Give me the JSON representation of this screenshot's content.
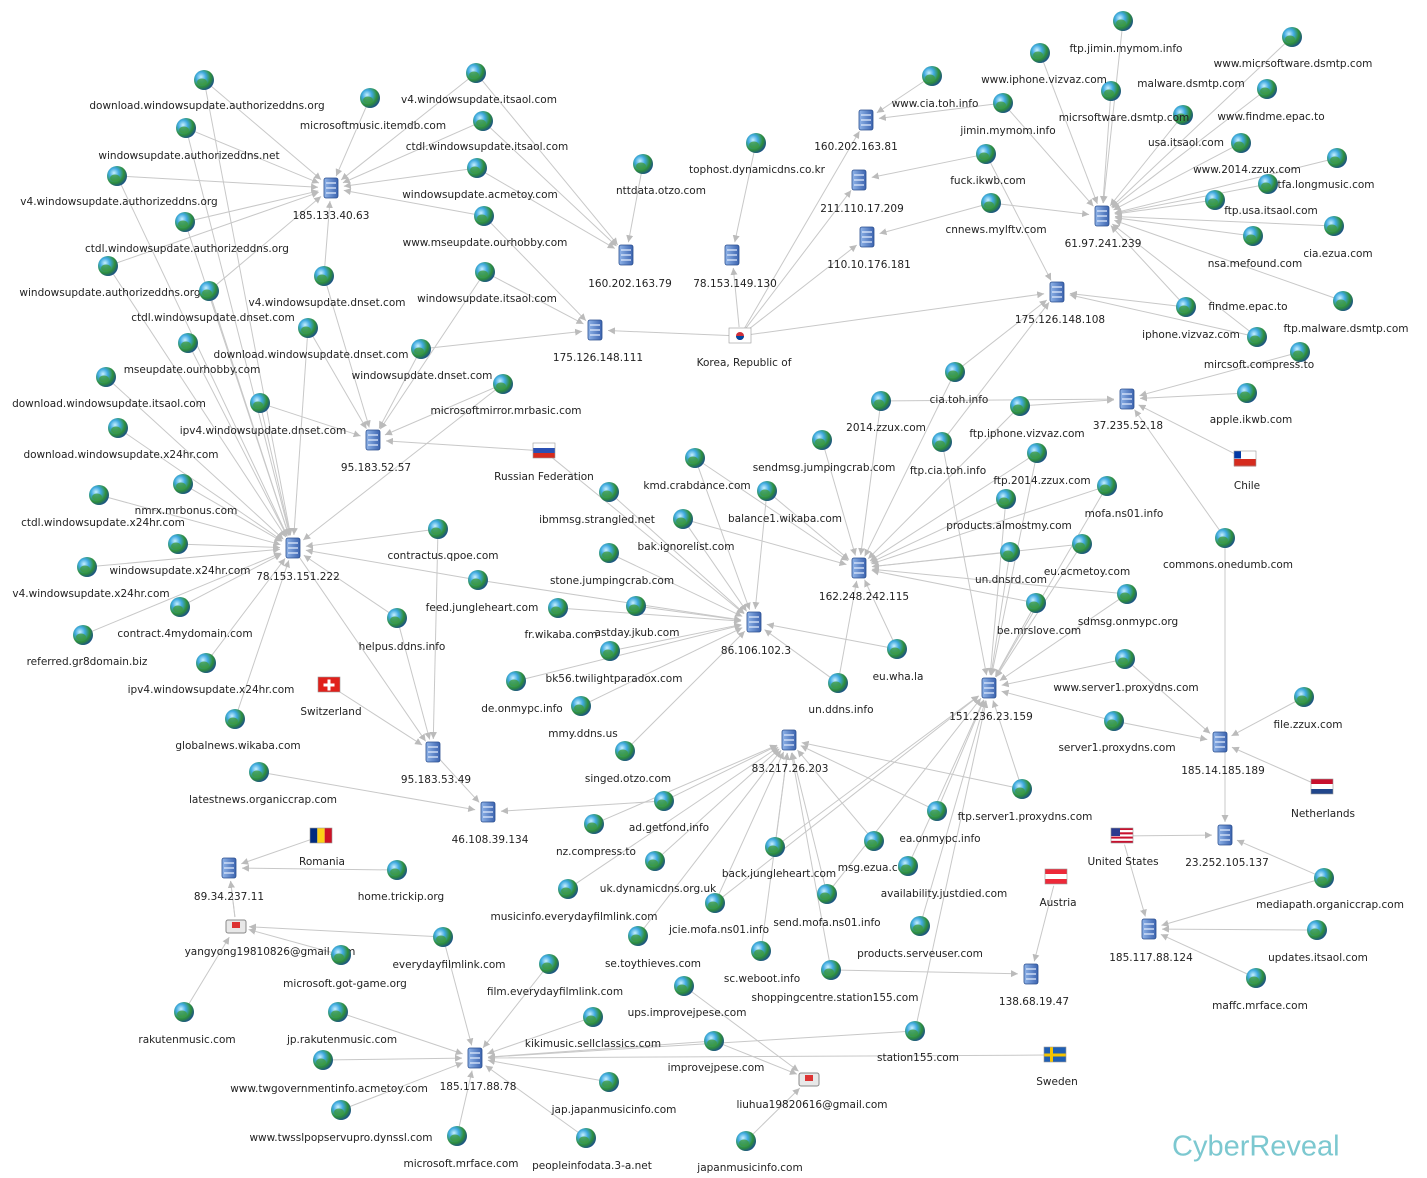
{
  "servers": [
    "185.133.40.63",
    "160.202.163.79",
    "78.153.149.130",
    "160.202.163.81",
    "211.110.17.209",
    "110.10.176.181",
    "61.97.241.239",
    "175.126.148.108",
    "175.126.148.111",
    "37.235.52.18",
    "95.183.52.57",
    "78.153.151.222",
    "162.248.242.115",
    "86.106.102.3",
    "151.236.23.159",
    "83.217.26.203",
    "185.14.185.189",
    "95.183.53.49",
    "46.108.39.134",
    "89.34.237.11",
    "23.252.105.137",
    "185.117.88.124",
    "138.68.19.47",
    "185.117.88.78"
  ],
  "countries": [
    "Korea, Republic of",
    "Russian Federation",
    "Chile",
    "Switzerland",
    "Romania",
    "Netherlands",
    "United States",
    "Austria",
    "Sweden"
  ],
  "emails": [
    "yangyong19810826@gmail.com",
    "liuhua19820616@gmail.com"
  ],
  "domains": [
    "download.windowsupdate.authorizeddns.org",
    "microsoftmusic.itemdb.com",
    "v4.windowsupdate.itsaol.com",
    "windowsupdate.authorizeddns.net",
    "ctdl.windowsupdate.itsaol.com",
    "v4.windowsupdate.authorizeddns.org",
    "windowsupdate.acmetoy.com",
    "ctdl.windowsupdate.authorizeddns.org",
    "www.mseupdate.ourhobby.com",
    "windowsupdate.authorizeddns.org",
    "v4.windowsupdate.dnset.com",
    "windowsupdate.itsaol.com",
    "ctdl.windowsupdate.dnset.com",
    "download.windowsupdate.dnset.com",
    "mseupdate.ourhobby.com",
    "download.windowsupdate.itsaol.com",
    "windowsupdate.dnset.com",
    "microsoftmirror.mrbasic.com",
    "ipv4.windowsupdate.dnset.com",
    "download.windowsupdate.x24hr.com",
    "nmrx.mrbonus.com",
    "ctdl.windowsupdate.x24hr.com",
    "windowsupdate.x24hr.com",
    "contractus.qpoe.com",
    "v4.windowsupdate.x24hr.com",
    "feed.jungleheart.com",
    "stone.jumpingcrab.com",
    "contract.4mydomain.com",
    "referred.gr8domain.biz",
    "helpus.ddns.info",
    "ipv4.windowsupdate.x24hr.com",
    "globalnews.wikaba.com",
    "latestnews.organiccrap.com",
    "fr.wikaba.com",
    "astday.jkub.com",
    "bk56.twilightparadox.com",
    "de.onmypc.info",
    "mmy.ddns.us",
    "singed.otzo.com",
    "ad.getfond.info",
    "nz.compress.to",
    "uk.dynamicdns.org.uk",
    "home.trickip.org",
    "musicinfo.everydayfilmlink.com",
    "everydayfilmlink.com",
    "microsoft.got-game.org",
    "film.everydayfilmlink.com",
    "rakutenmusic.com",
    "jp.rakutenmusic.com",
    "kikimusic.sellclassics.com",
    "www.twgovernmentinfo.acmetoy.com",
    "jap.japanmusicinfo.com",
    "www.twsslpopservupro.dynssl.com",
    "microsoft.mrface.com",
    "peopleinfodata.3-a.net",
    "japanmusicinfo.com",
    "improvejpese.com",
    "ups.improvejpese.com",
    "se.toythieves.com",
    "jcie.mofa.ns01.info",
    "sc.weboot.info",
    "back.jungleheart.com",
    "send.mofa.ns01.info",
    "shoppingcentre.station155.com",
    "station155.com",
    "msg.ezua.com",
    "availability.justdied.com",
    "products.serveuser.com",
    "ea.onmypc.info",
    "ftp.server1.proxydns.com",
    "eu.wha.la",
    "un.ddns.info",
    "kmd.crabdance.com",
    "sendmsg.jumpingcrab.com",
    "ibmmsg.strangled.net",
    "balance1.wikaba.com",
    "bak.ignorelist.com",
    "2014.zzux.com",
    "cia.toh.info",
    "ftp.iphone.vizvaz.com",
    "ftp.cia.toh.info",
    "ftp.2014.zzux.com",
    "products.almostmy.com",
    "mofa.ns01.info",
    "un.dnsrd.com",
    "eu.acmetoy.com",
    "be.mrslove.com",
    "sdmsg.onmypc.org",
    "www.server1.proxydns.com",
    "server1.proxydns.com",
    "file.zzux.com",
    "commons.onedumb.com",
    "apple.ikwb.com",
    "mircsoft.compress.to",
    "iphone.vizvaz.com",
    "findme.epac.to",
    "ftp.malware.dsmtp.com",
    "nsa.mefound.com",
    "cia.ezua.com",
    "ftp.usa.itsaol.com",
    "usa.itsaol.com",
    "www.findme.epac.to",
    "www.micrsoftware.dsmtp.com",
    "malware.dsmtp.com",
    "ftp.jimin.mymom.info",
    "www.iphone.vizvaz.com",
    "micrsoftware.dsmtp.com",
    "www.cia.toh.info",
    "jimin.mymom.info",
    "fuck.ikwb.com",
    "cnnews.mylftv.com",
    "tophost.dynamicdns.co.kr",
    "nttdata.otzo.com",
    "mediapath.organiccrap.com",
    "updates.itsaol.com",
    "maffc.mrface.com",
    "www.2014.zzux.com",
    "tfa.longmusic.com"
  ],
  "brand": "CyberReveal"
}
